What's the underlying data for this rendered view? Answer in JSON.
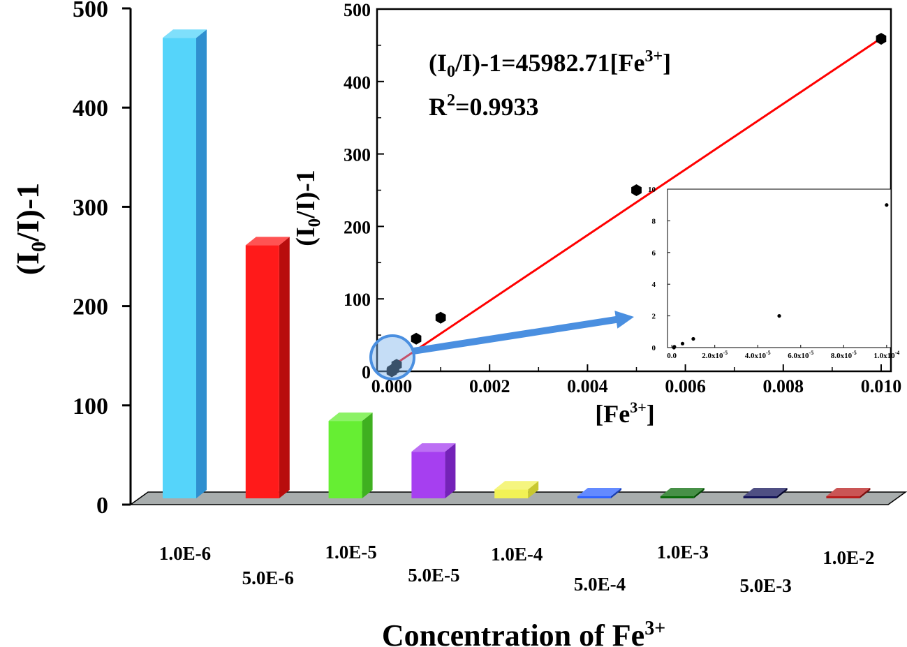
{
  "colors": {
    "floor": "#a8adad",
    "fit_line": "#ff0000",
    "arrow": "#4a8fe0",
    "axis": "#000000"
  },
  "chart_data": [
    {
      "type": "bar",
      "style": "3d",
      "xlabel": "Concentration of Fe",
      "xlabel_sup": "3+",
      "ylabel": "(I",
      "ylabel_sub": "0",
      "ylabel_tail": "/I)-1",
      "ylim": [
        0,
        500
      ],
      "yticks": [
        "0",
        "100",
        "200",
        "300",
        "400",
        "500"
      ],
      "categories": [
        "1.0E-6",
        "5.0E-6",
        "1.0E-5",
        "5.0E-5",
        "1.0E-4",
        "5.0E-4",
        "1.0E-3",
        "5.0E-3",
        "1.0E-2"
      ],
      "values": [
        464,
        255,
        78,
        47,
        9,
        2,
        1,
        1,
        1
      ],
      "colors": [
        "#55d4fa",
        "#ff1a1a",
        "#66ee33",
        "#a63ff0",
        "#f2f255",
        "#2f63ff",
        "#0a6b0a",
        "#14145a",
        "#b81c1c"
      ],
      "side_colors": [
        "#2f8fcf",
        "#b80d0d",
        "#3fb020",
        "#7422b8",
        "#c8c830",
        "#1a3fb0",
        "#044a04",
        "#06062e",
        "#7c0e0e"
      ]
    },
    {
      "type": "scatter",
      "xlabel": "[Fe",
      "xlabel_sup": "3+",
      "xlabel_tail": "]",
      "ylabel": "(I",
      "ylabel_sub": "0",
      "ylabel_tail": "/I)-1",
      "xlim": [
        -0.0003,
        0.0102
      ],
      "ylim": [
        0,
        500
      ],
      "xticks": [
        "0.000",
        "0.002",
        "0.004",
        "0.006",
        "0.008",
        "0.010"
      ],
      "yticks": [
        "0",
        "100",
        "200",
        "300",
        "400",
        "500"
      ],
      "points": [
        {
          "x": 1e-06,
          "y": 0
        },
        {
          "x": 5e-06,
          "y": 1
        },
        {
          "x": 1e-05,
          "y": 2
        },
        {
          "x": 5e-05,
          "y": 3
        },
        {
          "x": 0.0001,
          "y": 9
        },
        {
          "x": 0.0005,
          "y": 45
        },
        {
          "x": 0.001,
          "y": 74
        },
        {
          "x": 0.005,
          "y": 250
        },
        {
          "x": 0.01,
          "y": 459
        }
      ],
      "fit": {
        "slope": 45982.71,
        "intercept": 0,
        "x_range": [
          0,
          0.01
        ]
      },
      "equation_prefix": "(I",
      "equation_sub": "0",
      "equation_mid": "/I)-1=45982.71[Fe",
      "equation_sup": "3+",
      "equation_tail": "]",
      "r2_prefix": "R",
      "r2_sup": "2",
      "r2_value": "=0.9933"
    },
    {
      "type": "scatter",
      "xlim": [
        -2e-06,
        0.000102
      ],
      "ylim": [
        0,
        10
      ],
      "yticks": [
        "0",
        "2",
        "4",
        "6",
        "8",
        "10"
      ],
      "xticks": [
        {
          "base": "0.0",
          "sup": ""
        },
        {
          "base": "2.0x10",
          "sup": "-5"
        },
        {
          "base": "4.0x10",
          "sup": "-5"
        },
        {
          "base": "6.0x10",
          "sup": "-5"
        },
        {
          "base": "8.0x10",
          "sup": "-5"
        },
        {
          "base": "1.0x10",
          "sup": "-4"
        }
      ],
      "points": [
        {
          "x": 1e-06,
          "y": 0
        },
        {
          "x": 1.2e-06,
          "y": 0.05
        },
        {
          "x": 5e-06,
          "y": 0.25
        },
        {
          "x": 1e-05,
          "y": 0.55
        },
        {
          "x": 5e-05,
          "y": 2
        },
        {
          "x": 0.0001,
          "y": 9
        }
      ]
    }
  ]
}
